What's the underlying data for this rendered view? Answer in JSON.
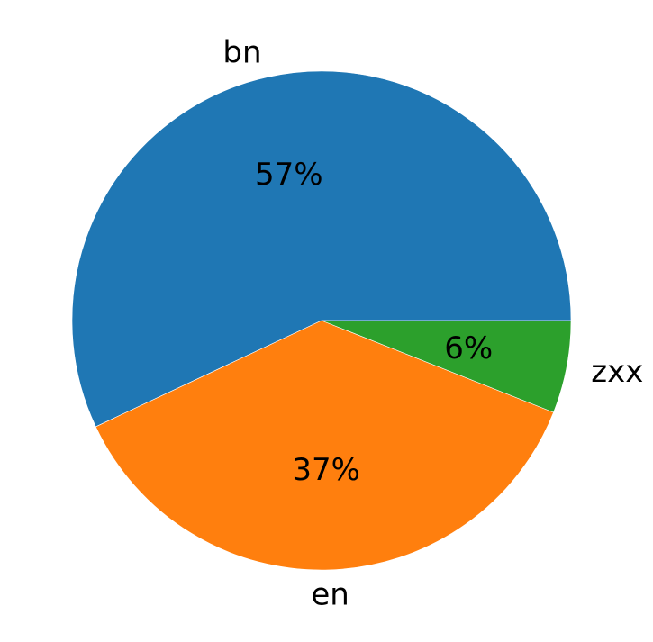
{
  "chart_data": {
    "type": "pie",
    "title": "",
    "start_angle_deg": 0,
    "direction": "counterclockwise",
    "slices": [
      {
        "label": "bn",
        "value": 57,
        "display": "57%",
        "color": "#1f77b4"
      },
      {
        "label": "en",
        "value": 37,
        "display": "37%",
        "color": "#ff7f0e"
      },
      {
        "label": "zxx",
        "value": 6,
        "display": "6%",
        "color": "#2ca02c"
      }
    ]
  }
}
